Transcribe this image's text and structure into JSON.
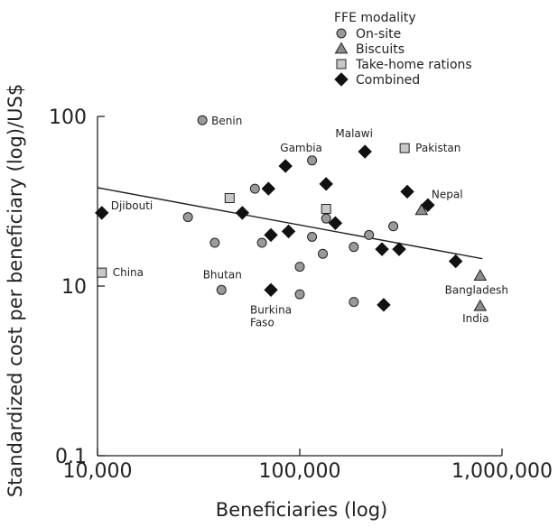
{
  "chart_data": {
    "type": "scatter",
    "xlabel": "Beneficiaries (log)",
    "ylabel": "Standardized cost per beneficiary (log)/US$",
    "x_scale": "log",
    "y_scale": "log",
    "xlim": [
      10000,
      1000000
    ],
    "ylim": [
      0.1,
      100
    ],
    "x_ticks": [
      {
        "value": 10000,
        "label": "10,000"
      },
      {
        "value": 100000,
        "label": "100,000"
      },
      {
        "value": 1000000,
        "label": "1,000,000"
      }
    ],
    "y_ticks": [
      {
        "value": 0.1,
        "label": "0.1"
      },
      {
        "value": 10,
        "label": "10"
      },
      {
        "value": 100,
        "label": "100"
      }
    ],
    "grid": false,
    "legend": {
      "title": "FFE modality",
      "placement": "top-right",
      "entries": [
        {
          "name": "On-site",
          "marker": "circle"
        },
        {
          "name": "Biscuits",
          "marker": "triangle"
        },
        {
          "name": "Take-home rations",
          "marker": "square"
        },
        {
          "name": "Combined",
          "marker": "diamond"
        }
      ]
    },
    "colors": {
      "circle": "#9a9a9a",
      "triangle": "#8c8c8c",
      "square": "#c8c8c8",
      "diamond": "#111111",
      "stroke": "#222222"
    },
    "series": [
      {
        "name": "On-site",
        "marker": "circle",
        "points": [
          {
            "x": 33000,
            "y": 95,
            "label": "Benin"
          },
          {
            "x": 115000,
            "y": 55,
            "label": "Gambia"
          },
          {
            "x": 41000,
            "y": 9,
            "label": "Bhutan"
          },
          {
            "x": 28000,
            "y": 25.5
          },
          {
            "x": 38000,
            "y": 18
          },
          {
            "x": 60000,
            "y": 37.5
          },
          {
            "x": 65000,
            "y": 18
          },
          {
            "x": 100000,
            "y": 13
          },
          {
            "x": 100000,
            "y": 8
          },
          {
            "x": 115000,
            "y": 19.5
          },
          {
            "x": 130000,
            "y": 15.5
          },
          {
            "x": 135000,
            "y": 25
          },
          {
            "x": 185000,
            "y": 17
          },
          {
            "x": 185000,
            "y": 6.5
          },
          {
            "x": 220000,
            "y": 20
          },
          {
            "x": 290000,
            "y": 22.5
          }
        ]
      },
      {
        "name": "Biscuits",
        "marker": "triangle",
        "points": [
          {
            "x": 400000,
            "y": 28
          },
          {
            "x": 780000,
            "y": 11.5,
            "label": "Bangladesh"
          },
          {
            "x": 780000,
            "y": 5.8,
            "label": "India"
          }
        ]
      },
      {
        "name": "Take-home rations",
        "marker": "square",
        "points": [
          {
            "x": 330000,
            "y": 65,
            "label": "Pakistan"
          },
          {
            "x": 10500,
            "y": 12,
            "label": "China"
          },
          {
            "x": 45000,
            "y": 33
          },
          {
            "x": 135000,
            "y": 28.5
          }
        ]
      },
      {
        "name": "Combined",
        "marker": "diamond",
        "points": [
          {
            "x": 10500,
            "y": 27,
            "label": "Djibouti"
          },
          {
            "x": 210000,
            "y": 62,
            "label": "Malawi"
          },
          {
            "x": 430000,
            "y": 30,
            "label": "Nepal"
          },
          {
            "x": 72000,
            "y": 9,
            "label": "Burkina Faso"
          },
          {
            "x": 52000,
            "y": 27
          },
          {
            "x": 70000,
            "y": 37.5
          },
          {
            "x": 72000,
            "y": 20
          },
          {
            "x": 85000,
            "y": 51
          },
          {
            "x": 88000,
            "y": 21
          },
          {
            "x": 135000,
            "y": 40
          },
          {
            "x": 150000,
            "y": 23.5
          },
          {
            "x": 255000,
            "y": 16.5
          },
          {
            "x": 310000,
            "y": 16.5
          },
          {
            "x": 340000,
            "y": 36
          },
          {
            "x": 260000,
            "y": 6
          },
          {
            "x": 590000,
            "y": 14
          }
        ]
      }
    ],
    "trendline": {
      "x": [
        10000,
        800000
      ],
      "y": [
        38,
        14.5
      ]
    }
  }
}
